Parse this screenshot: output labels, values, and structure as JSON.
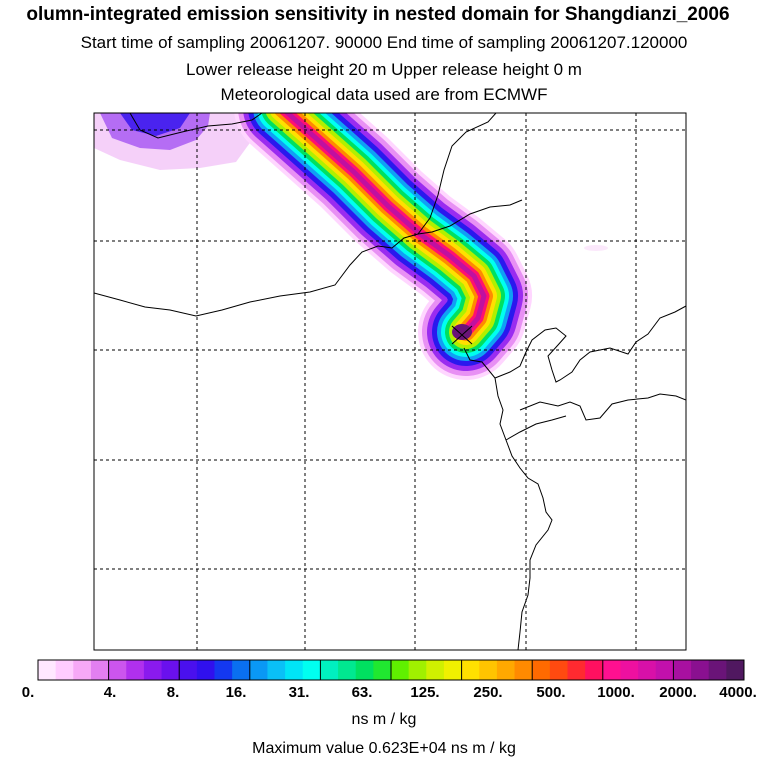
{
  "title": {
    "line1": "olumn-integrated emission sensitivity in nested domain for Shangdianzi_2006",
    "line2": "Start time of sampling 20061207. 90000     End time of sampling 20061207.120000",
    "line3": "Lower release height   20 m          Upper release height    0 m",
    "line4": "Meteorological data used are from ECMWF"
  },
  "colorbar": {
    "ticks": [
      "0.",
      "4.",
      "8.",
      "16.",
      "31.",
      "63.",
      "125.",
      "250.",
      "500.",
      "1000.",
      "2000.",
      "4000."
    ],
    "colors": [
      "#ffe8ff",
      "#ffccff",
      "#f7a8f7",
      "#e27ff0",
      "#cc55ee",
      "#b030ee",
      "#8a1aee",
      "#6a10ee",
      "#4a10ee",
      "#3010ee",
      "#1438f0",
      "#0a70f0",
      "#0a98f5",
      "#0ac0f7",
      "#00e4f7",
      "#00fff0",
      "#00f0c0",
      "#00e890",
      "#00e060",
      "#20e830",
      "#60f000",
      "#a0f000",
      "#d0f000",
      "#f0f000",
      "#ffe000",
      "#ffc400",
      "#ffa800",
      "#ff8a00",
      "#ff6a00",
      "#ff4a10",
      "#ff2a30",
      "#ff1060",
      "#ff1090",
      "#ee10a0",
      "#d810a8",
      "#c210ac",
      "#a810a0",
      "#8a1090",
      "#6a1478",
      "#501860"
    ],
    "units": "ns m / kg",
    "max_value_text": "Maximum value  0.623E+04 ns m / kg"
  },
  "map": {
    "plume_colors": [
      "#ffd6ff",
      "#e890f4",
      "#9a2cf0",
      "#2a18ee",
      "#10a0f4",
      "#00fff0",
      "#00e060",
      "#b0f000",
      "#ffe000",
      "#ff8a00",
      "#ff1070",
      "#c010a0"
    ]
  }
}
